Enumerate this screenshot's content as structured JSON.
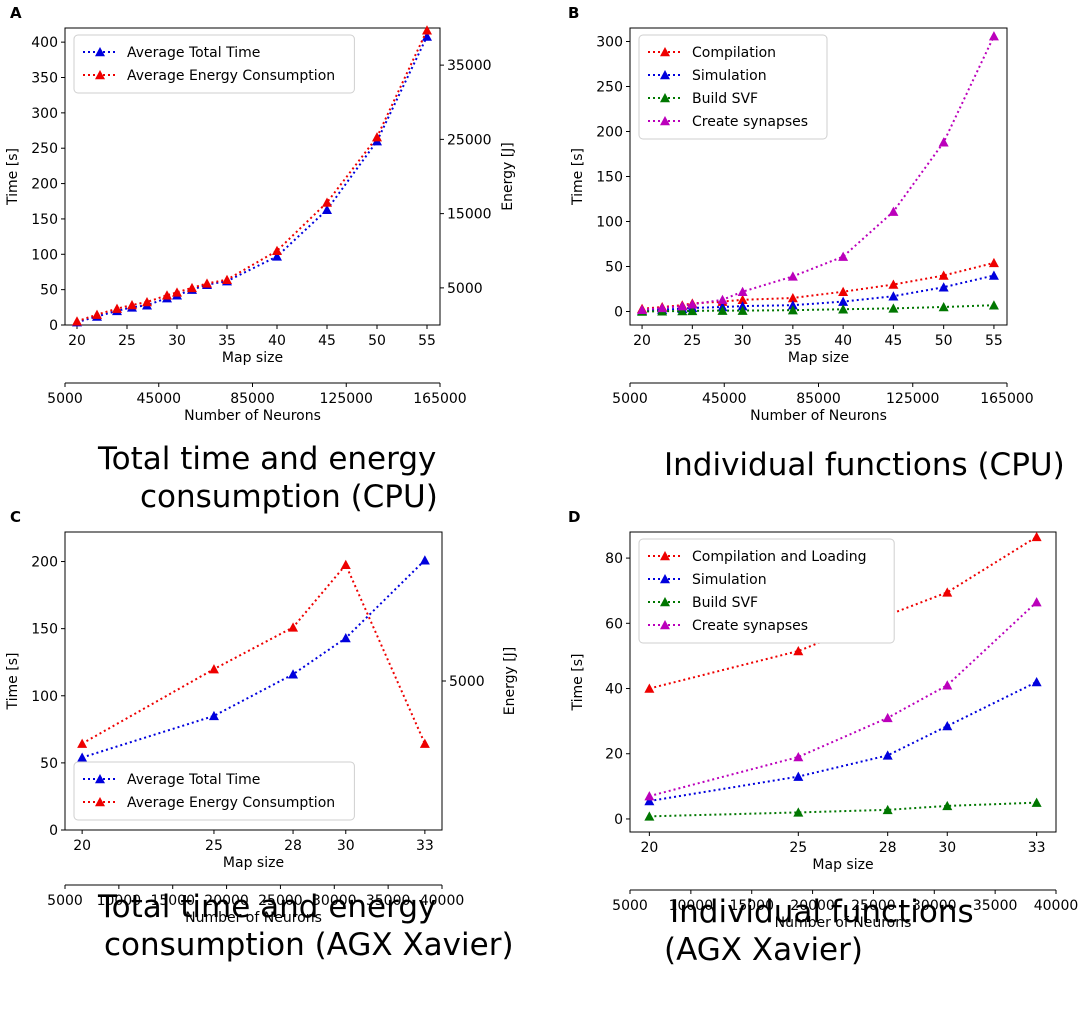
{
  "captions": {
    "A": [
      "Total time and energy",
      "consumption (CPU)"
    ],
    "B": [
      "Individual functions (CPU)"
    ],
    "C": [
      "Total time and energy",
      "consumption (AGX Xavier)"
    ],
    "D": [
      "Individual functions",
      "(AGX Xavier)"
    ]
  },
  "colors": {
    "red": "#ee0000",
    "blue": "#0000dd",
    "green": "#007700",
    "magenta": "#bb00bb"
  },
  "chart_data": [
    {
      "panel": "A",
      "type": "line",
      "title": "",
      "xlabel": "Map size",
      "ylabel": "Time [s]",
      "y2label": "Energy [J]",
      "x2label": "Number of Neurons",
      "xlim": [
        18.8,
        56.3
      ],
      "ylim": [
        0,
        420
      ],
      "y2lim": [
        0,
        40000
      ],
      "x2lim": [
        5000,
        165000
      ],
      "xticks": [
        20,
        25,
        30,
        35,
        40,
        45,
        50,
        55
      ],
      "yticks": [
        0,
        50,
        100,
        150,
        200,
        250,
        300,
        350,
        400
      ],
      "y2ticks": [
        5000,
        15000,
        25000,
        35000
      ],
      "x2ticks": [
        5000,
        45000,
        85000,
        125000,
        165000
      ],
      "legend_position": "upper-left",
      "x": [
        20,
        22,
        24,
        25.5,
        27,
        29,
        30,
        31.5,
        33,
        35,
        40,
        45,
        50,
        55
      ],
      "x_markers": [
        20,
        22,
        24,
        25.5,
        27,
        29,
        30,
        31.5,
        33,
        35,
        40,
        45,
        50,
        55
      ],
      "series": [
        {
          "name": "Average Total Time",
          "color": "blue",
          "axis": "left",
          "values": [
            4,
            12,
            20,
            25,
            28,
            38,
            42,
            50,
            57,
            62,
            97,
            163,
            260,
            408
          ]
        },
        {
          "name": "Average Energy Consumption",
          "color": "red",
          "axis": "right",
          "values": [
            500,
            1400,
            2200,
            2700,
            3100,
            4000,
            4400,
            5000,
            5600,
            6100,
            10000,
            16500,
            25300,
            39700
          ]
        }
      ]
    },
    {
      "panel": "B",
      "type": "line",
      "title": "",
      "xlabel": "Map size",
      "ylabel": "Time [s]",
      "x2label": "Number of Neurons",
      "xlim": [
        18.8,
        56.3
      ],
      "ylim": [
        -15,
        315
      ],
      "x2lim": [
        5000,
        165000
      ],
      "xticks": [
        20,
        25,
        30,
        35,
        40,
        45,
        50,
        55
      ],
      "yticks": [
        0,
        50,
        100,
        150,
        200,
        250,
        300
      ],
      "x2ticks": [
        5000,
        45000,
        85000,
        125000,
        165000
      ],
      "legend_position": "upper-left",
      "x": [
        20,
        22,
        24,
        25,
        28,
        30,
        35,
        40,
        45,
        50,
        55
      ],
      "series": [
        {
          "name": "Compilation",
          "color": "red",
          "values": [
            3,
            5,
            7,
            9,
            11,
            13,
            15,
            22,
            30,
            40,
            54
          ]
        },
        {
          "name": "Simulation",
          "color": "blue",
          "values": [
            1,
            2,
            3,
            4,
            5,
            6,
            7,
            11,
            17,
            27,
            40
          ]
        },
        {
          "name": "Build SVF",
          "color": "green",
          "values": [
            0,
            0.3,
            0.5,
            0.7,
            1,
            1,
            1.5,
            2.5,
            3.5,
            5,
            7
          ]
        },
        {
          "name": "Create synapses",
          "color": "magenta",
          "values": [
            2,
            4,
            6,
            8,
            13,
            22,
            39,
            61,
            111,
            188,
            306
          ]
        }
      ]
    },
    {
      "panel": "C",
      "type": "line",
      "title": "",
      "xlabel": "Map size",
      "ylabel": "Time [s]",
      "y2label": "Energy [J]",
      "x2label": "Number of Neurons",
      "xlim": [
        19.35,
        33.65
      ],
      "ylim": [
        0,
        222
      ],
      "y2lim": [
        0,
        10000
      ],
      "x2lim": [
        5000,
        40000
      ],
      "xticks": [
        20,
        25,
        28,
        30,
        33
      ],
      "yticks": [
        0,
        50,
        100,
        150,
        200
      ],
      "y2ticks": [
        5000
      ],
      "x2ticks": [
        5000,
        10000,
        15000,
        20000,
        25000,
        30000,
        35000,
        40000
      ],
      "legend_position": "lower-left",
      "x": [
        20,
        25,
        28,
        30,
        33
      ],
      "series": [
        {
          "name": "Average Total Time",
          "color": "blue",
          "axis": "left",
          "values": [
            54,
            85,
            116,
            143,
            201
          ]
        },
        {
          "name": "Average Energy Consumption",
          "color": "red",
          "axis": "right",
          "values": [
            2900,
            5400,
            6800,
            8900,
            2900
          ]
        }
      ]
    },
    {
      "panel": "D",
      "type": "line",
      "title": "",
      "xlabel": "Map size",
      "ylabel": "Time [s]",
      "x2label": "Number of Neurons",
      "xlim": [
        19.35,
        33.65
      ],
      "ylim": [
        -4,
        88
      ],
      "x2lim": [
        5000,
        40000
      ],
      "xticks": [
        20,
        25,
        28,
        30,
        33
      ],
      "yticks": [
        0,
        20,
        40,
        60,
        80
      ],
      "x2ticks": [
        5000,
        10000,
        15000,
        20000,
        25000,
        30000,
        35000,
        40000
      ],
      "legend_position": "upper-left",
      "x": [
        20,
        25,
        28,
        30,
        33
      ],
      "series": [
        {
          "name": "Compilation and Loading",
          "color": "red",
          "values": [
            40,
            51.5,
            62.5,
            69.5,
            86.5
          ]
        },
        {
          "name": "Simulation",
          "color": "blue",
          "values": [
            5.5,
            13,
            19.5,
            28.5,
            42
          ]
        },
        {
          "name": "Build SVF",
          "color": "green",
          "values": [
            0.8,
            2,
            2.8,
            4,
            5
          ]
        },
        {
          "name": "Create synapses",
          "color": "magenta",
          "values": [
            7,
            19,
            31,
            41,
            66.5
          ]
        }
      ]
    }
  ]
}
